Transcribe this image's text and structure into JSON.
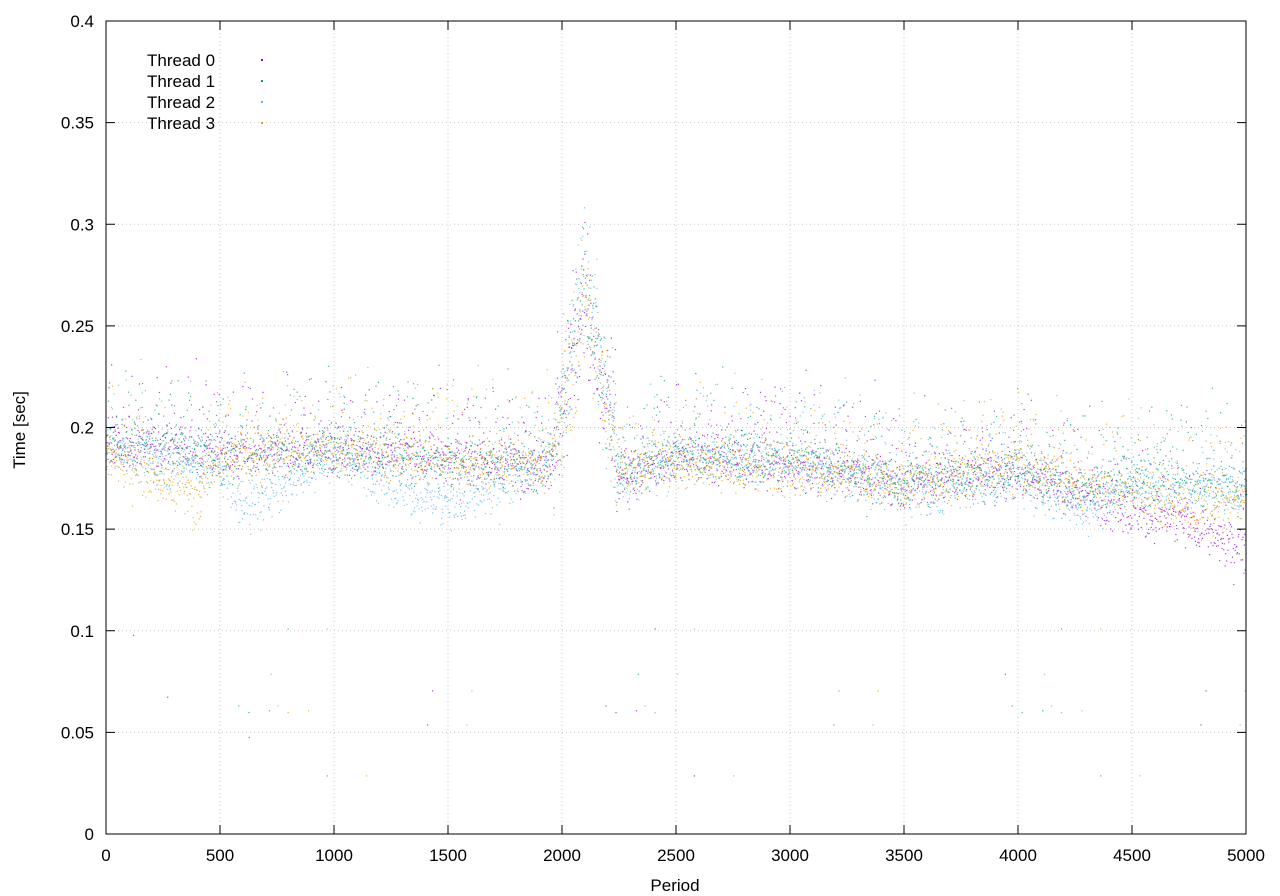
{
  "chart_data": {
    "type": "scatter",
    "title": "",
    "xlabel": "Period",
    "ylabel": "Time [sec]",
    "xlim": [
      0,
      5000
    ],
    "ylim": [
      0,
      0.4
    ],
    "x_ticks": [
      0,
      500,
      1000,
      1500,
      2000,
      2500,
      3000,
      3500,
      4000,
      4500,
      5000
    ],
    "y_ticks": [
      0,
      0.05,
      0.1,
      0.15,
      0.2,
      0.25,
      0.3,
      0.35,
      0.4
    ],
    "x_tick_labels": [
      "0",
      "500",
      "1000",
      "1500",
      "2000",
      "2500",
      "3000",
      "3500",
      "4000",
      "4500",
      "5000"
    ],
    "y_tick_labels": [
      "0",
      "0.05",
      "0.1",
      "0.15",
      "0.2",
      "0.25",
      "0.3",
      "0.35",
      "0.4"
    ],
    "grid": true,
    "legend_position": "top-left",
    "series": [
      {
        "name": "Thread 0",
        "color": "#9400d3",
        "trend": [
          [
            0,
            0.192
          ],
          [
            500,
            0.188
          ],
          [
            1000,
            0.19
          ],
          [
            1500,
            0.185
          ],
          [
            1950,
            0.18
          ],
          [
            2100,
            0.265
          ],
          [
            2250,
            0.175
          ],
          [
            2500,
            0.186
          ],
          [
            3000,
            0.182
          ],
          [
            3500,
            0.175
          ],
          [
            4000,
            0.178
          ],
          [
            4300,
            0.168
          ],
          [
            4500,
            0.16
          ],
          [
            4800,
            0.15
          ],
          [
            5000,
            0.14
          ]
        ]
      },
      {
        "name": "Thread 1",
        "color": "#009e73",
        "trend": [
          [
            0,
            0.192
          ],
          [
            500,
            0.187
          ],
          [
            1000,
            0.189
          ],
          [
            1500,
            0.183
          ],
          [
            1950,
            0.182
          ],
          [
            2100,
            0.27
          ],
          [
            2250,
            0.178
          ],
          [
            2500,
            0.188
          ],
          [
            3000,
            0.185
          ],
          [
            3500,
            0.172
          ],
          [
            4000,
            0.18
          ],
          [
            4300,
            0.17
          ],
          [
            4500,
            0.175
          ],
          [
            4800,
            0.173
          ],
          [
            5000,
            0.17
          ]
        ]
      },
      {
        "name": "Thread 2",
        "color": "#56b4e9",
        "trend": [
          [
            0,
            0.19
          ],
          [
            500,
            0.18
          ],
          [
            600,
            0.16
          ],
          [
            1000,
            0.188
          ],
          [
            1500,
            0.16
          ],
          [
            1950,
            0.185
          ],
          [
            2100,
            0.272
          ],
          [
            2250,
            0.176
          ],
          [
            2500,
            0.187
          ],
          [
            3000,
            0.184
          ],
          [
            3500,
            0.17
          ],
          [
            4000,
            0.176
          ],
          [
            4300,
            0.16
          ],
          [
            4500,
            0.172
          ],
          [
            4800,
            0.17
          ],
          [
            5000,
            0.168
          ]
        ]
      },
      {
        "name": "Thread 3",
        "color": "#e69f00",
        "trend": [
          [
            0,
            0.188
          ],
          [
            400,
            0.165
          ],
          [
            500,
            0.186
          ],
          [
            1000,
            0.19
          ],
          [
            1500,
            0.184
          ],
          [
            1950,
            0.182
          ],
          [
            2100,
            0.262
          ],
          [
            2250,
            0.178
          ],
          [
            2500,
            0.183
          ],
          [
            3000,
            0.18
          ],
          [
            3500,
            0.172
          ],
          [
            4000,
            0.182
          ],
          [
            4300,
            0.172
          ],
          [
            4500,
            0.17
          ],
          [
            4800,
            0.158
          ],
          [
            5000,
            0.168
          ]
        ]
      }
    ]
  }
}
